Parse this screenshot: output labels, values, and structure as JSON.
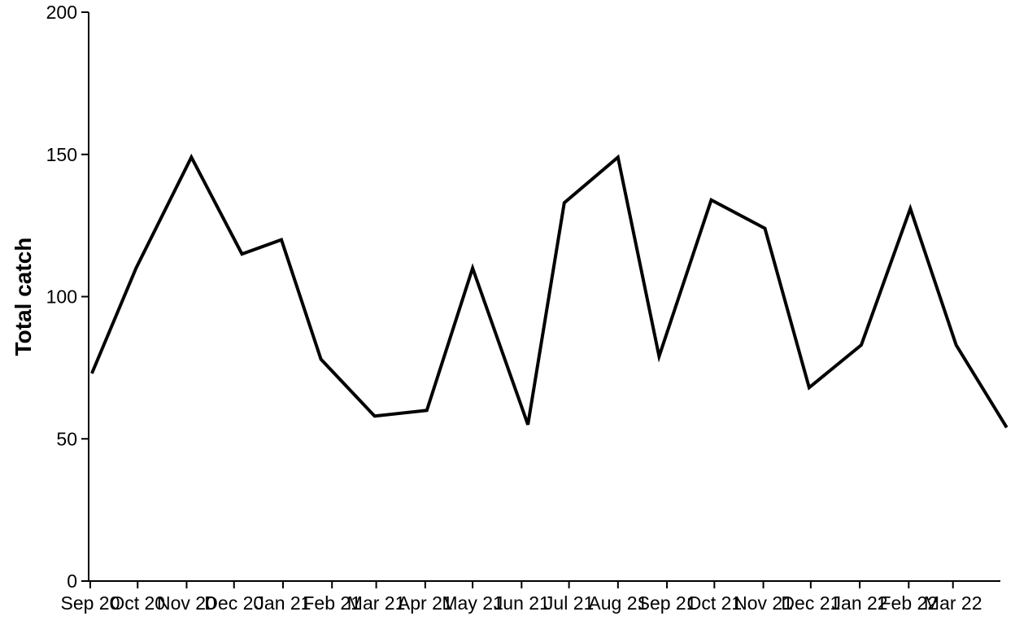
{
  "chart_data": {
    "type": "line",
    "xlabel": "",
    "ylabel": "Total catch",
    "ylim": [
      0,
      200
    ],
    "yticks": [
      0,
      50,
      100,
      150,
      200
    ],
    "xlim": [
      "2020-08-31",
      "2022-03-31"
    ],
    "x_tick_labels": [
      "Sep 20",
      "Oct 20",
      "Nov 20",
      "Dec 20",
      "Jan 21",
      "Feb 21",
      "Mar 21",
      "Apr 21",
      "May 21",
      "Jun 21",
      "Jul 21",
      "Aug 21",
      "Sep 21",
      "Oct 21",
      "Nov 21",
      "Dec 21",
      "Jan 22",
      "Feb 22",
      "Mar 22"
    ],
    "x_tick_dates": [
      "2020-09-01",
      "2020-10-01",
      "2020-11-01",
      "2020-12-01",
      "2021-01-01",
      "2021-02-01",
      "2021-03-01",
      "2021-04-01",
      "2021-05-01",
      "2021-06-01",
      "2021-07-01",
      "2021-08-01",
      "2021-09-01",
      "2021-10-01",
      "2021-11-01",
      "2021-12-01",
      "2022-01-01",
      "2022-02-01",
      "2022-03-01"
    ],
    "grid": false,
    "legend": "none",
    "line_color": "#000000",
    "series": [
      {
        "x": [
          "2020-09-02",
          "2020-09-30",
          "2020-11-04",
          "2020-12-06",
          "2020-12-31",
          "2021-01-25",
          "2021-02-28",
          "2021-04-02",
          "2021-05-01",
          "2021-06-05",
          "2021-06-28",
          "2021-08-01",
          "2021-08-27",
          "2021-09-29",
          "2021-11-02",
          "2021-11-30",
          "2022-01-02",
          "2022-02-02",
          "2022-03-03",
          "2022-04-04"
        ],
        "values": [
          73,
          110,
          149,
          115,
          120,
          78,
          58,
          60,
          110,
          55,
          133,
          149,
          79,
          134,
          124,
          68,
          83,
          131,
          83,
          54
        ]
      }
    ]
  }
}
